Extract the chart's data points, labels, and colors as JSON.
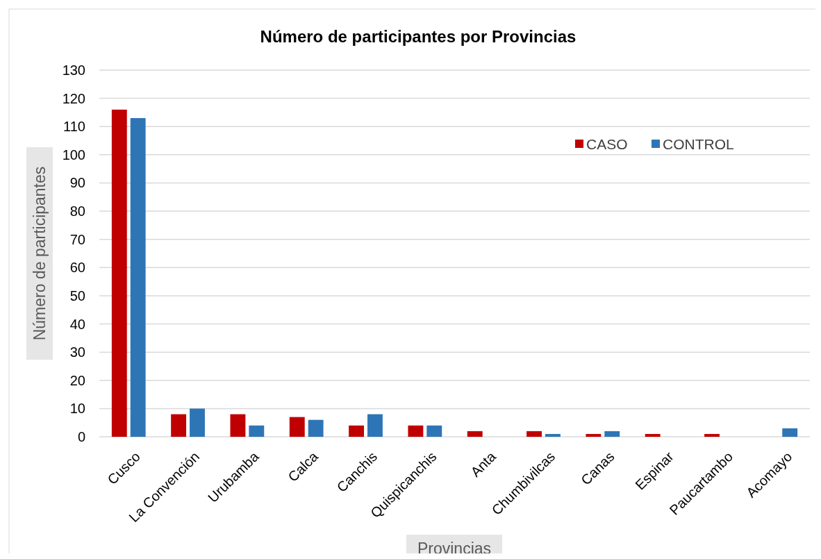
{
  "chart_data": {
    "type": "bar",
    "title": "Número de participantes por Provincias",
    "xlabel": "Provincias",
    "ylabel": "Número de participantes",
    "categories": [
      "Cusco",
      "La Convención",
      "Urubamba",
      "Calca",
      "Canchis",
      "Quispicanchis",
      "Anta",
      "Chumbivilcas",
      "Canas",
      "Espinar",
      "Paucartambo",
      "Acomayo"
    ],
    "series": [
      {
        "name": "CASO",
        "color": "#c00000",
        "values": [
          116,
          8,
          8,
          7,
          4,
          4,
          2,
          2,
          1,
          1,
          1,
          0
        ]
      },
      {
        "name": "CONTROL",
        "color": "#2e75b6",
        "values": [
          113,
          10,
          4,
          6,
          8,
          4,
          0,
          1,
          2,
          0,
          0,
          3
        ]
      }
    ],
    "ylim": [
      0,
      130
    ],
    "yticks": [
      0,
      10,
      20,
      30,
      40,
      50,
      60,
      70,
      80,
      90,
      100,
      110,
      120,
      130
    ],
    "grid": "y",
    "legend": "top right"
  }
}
